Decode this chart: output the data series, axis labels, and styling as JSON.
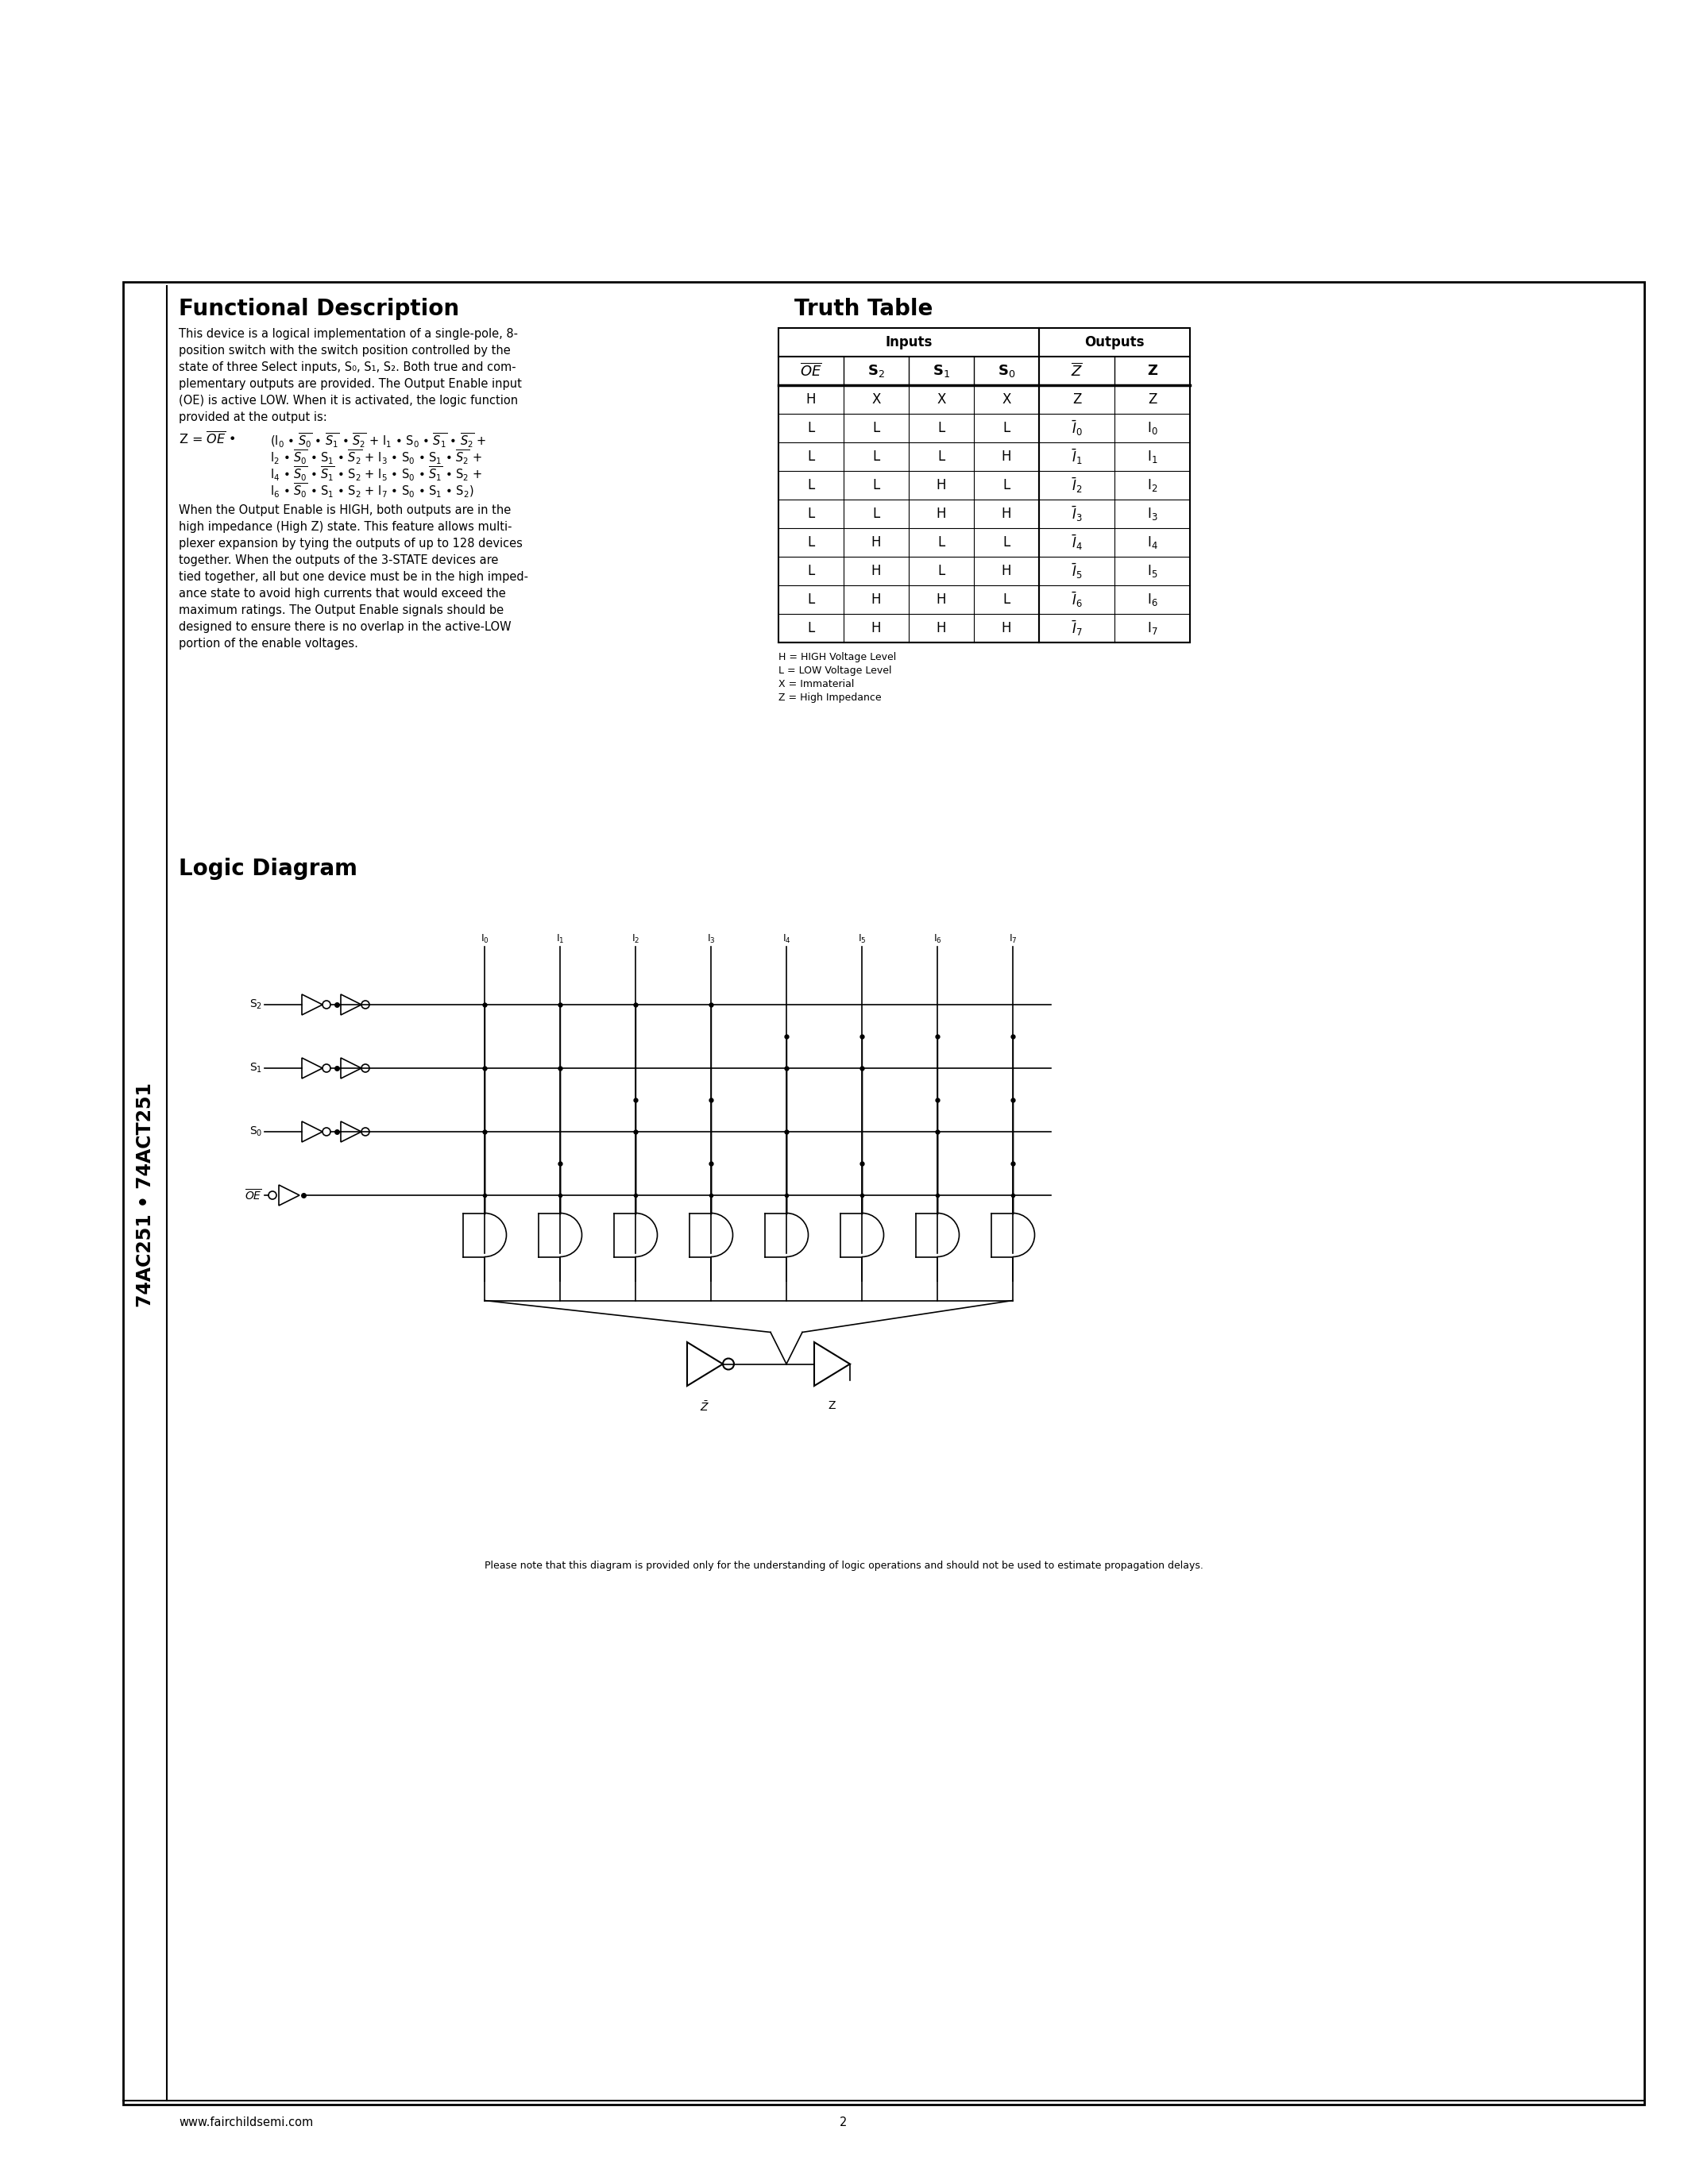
{
  "page_bg": "#ffffff",
  "sidebar_text": "74AC251 • 74ACT251",
  "section1_title": "Functional Description",
  "section1_body": [
    "This device is a logical implementation of a single-pole, 8-",
    "position switch with the switch position controlled by the",
    "state of three Select inputs, S₀, S₁, S₂. Both true and com-",
    "plementary outputs are provided. The Output Enable input",
    "(OE) is active LOW. When it is activated, the logic function",
    "provided at the output is:"
  ],
  "eq_line1": "(I₀ • $\\overline{S_0}$ • $\\overline{S_1}$ • $\\overline{S_2}$ + I₁ • S₀ • $\\overline{S_1}$ • $\\overline{S_2}$ +",
  "eq_line2": "I₂ • $\\overline{S_0}$ • S₁ • $\\overline{S_2}$ + I₃ • S₀ • S₁ • $\\overline{S_2}$ −",
  "eq_line3": "I₄ • $\\overline{S_0}$ • $\\overline{S_1}$ • S₂ + I₅ • S₀ • $\\overline{S_1}$ • S₂ −",
  "eq_line4": "I₆ • $\\overline{S_0}$ • S₁ • S₂ + I₇ • S₀ • S₁ • S₂)",
  "section1_body2": [
    "When the Output Enable is HIGH, both outputs are in the",
    "high impedance (High Z) state. This feature allows multi-",
    "plexer expansion by tying the outputs of up to 128 devices",
    "together. When the outputs of the 3-STATE devices are",
    "tied together, all but one device must be in the high imped-",
    "ance state to avoid high currents that would exceed the",
    "maximum ratings. The Output Enable signals should be",
    "designed to ensure there is no overlap in the active-LOW",
    "portion of the enable voltages."
  ],
  "section2_title": "Truth Table",
  "truth_table_rows": [
    [
      "H",
      "X",
      "X",
      "X",
      "Z",
      "Z"
    ],
    [
      "L",
      "L",
      "L",
      "L",
      "I0_bar",
      "I0"
    ],
    [
      "L",
      "L",
      "L",
      "H",
      "I1_bar",
      "I1"
    ],
    [
      "L",
      "L",
      "H",
      "L",
      "I2_bar",
      "I2"
    ],
    [
      "L",
      "L",
      "H",
      "H",
      "I3_bar",
      "I3"
    ],
    [
      "L",
      "H",
      "L",
      "L",
      "I4_bar",
      "I4"
    ],
    [
      "L",
      "H",
      "L",
      "H",
      "I5_bar",
      "I5"
    ],
    [
      "L",
      "H",
      "H",
      "L",
      "I6_bar",
      "I6"
    ],
    [
      "L",
      "H",
      "H",
      "H",
      "I7_bar",
      "I7"
    ]
  ],
  "truth_table_legend": [
    "H = HIGH Voltage Level",
    "L = LOW Voltage Level",
    "X = Immaterial",
    "Z = High Impedance"
  ],
  "section3_title": "Logic Diagram",
  "footer_website": "www.fairchildsemi.com",
  "footer_page": "2",
  "note_text": "Please note that this diagram is provided only for the understanding of logic operations and should not be used to estimate propagation delays."
}
